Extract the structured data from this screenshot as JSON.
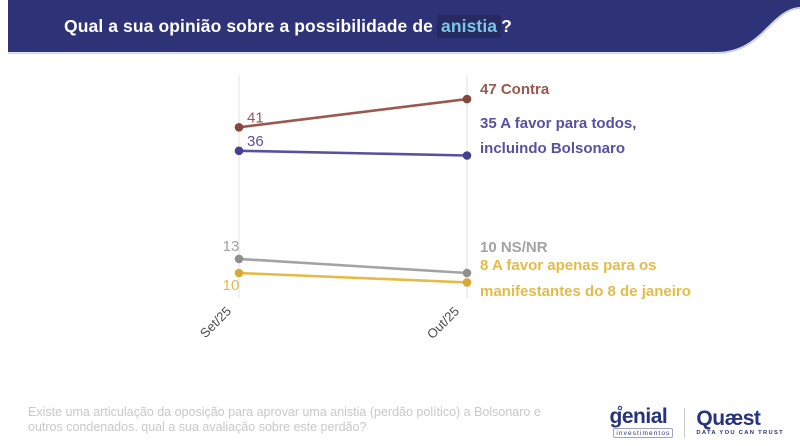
{
  "header": {
    "title_prefix": "Qual a sua opinião sobre a possibilidade de",
    "title_highlight": "anistia",
    "title_suffix": "?",
    "banner_color": "#2E3276",
    "highlight_bg_color": "#262A60",
    "highlight_text_color": "#7CC6E4"
  },
  "chart_data": {
    "type": "line",
    "title": "Qual a sua opinião sobre a possibilidade de anistia?",
    "categories": [
      "Set/25",
      "Out/25"
    ],
    "series": [
      {
        "name": "Contra",
        "values": [
          41,
          47
        ],
        "color": "#99594F",
        "point_color": "#84463D",
        "start_label": "41",
        "end_label_lines": [
          "47 Contra"
        ]
      },
      {
        "name": "A favor para todos, incluindo Bolsonaro",
        "values": [
          36,
          35
        ],
        "color": "#5751A0",
        "point_color": "#453F8C",
        "start_label": "36",
        "end_label_lines": [
          "35 A favor para todos,",
          "incluindo Bolsonaro"
        ]
      },
      {
        "name": "NS/NR",
        "values": [
          13,
          10
        ],
        "color": "#A3A3A3",
        "point_color": "#8F8F8F",
        "start_label": "13",
        "end_label_lines": [
          "10 NS/NR"
        ]
      },
      {
        "name": "A favor apenas para os manifestantes do 8 de janeiro",
        "values": [
          10,
          8
        ],
        "color": "#E5BB47",
        "point_color": "#D8AA33",
        "start_label": "10",
        "end_label_lines": [
          "8 A favor apenas para os",
          "manifestantes do 8 de janeiro"
        ]
      }
    ],
    "xlabel": "",
    "ylabel": "",
    "ylim": [
      0,
      55
    ],
    "grid": "vertical-only",
    "legend_position": "inline-right-of-last-point",
    "axis_label_color": "#4d4d4d",
    "gridline_color": "#e2e2e2"
  },
  "footer": {
    "question_line1": "Existe uma articulação da oposição para aprovar uma anistia (perdão político) a Bolsonaro e",
    "question_line2": "outros condenados. qual a sua avaliação sobre este perdão?"
  },
  "branding": {
    "genial_name": "genial",
    "genial_sub": "investimentos",
    "quaest_name": "Quæst",
    "quaest_tagline": "DATA YOU CAN TRUST",
    "logo_color": "#27337A"
  }
}
